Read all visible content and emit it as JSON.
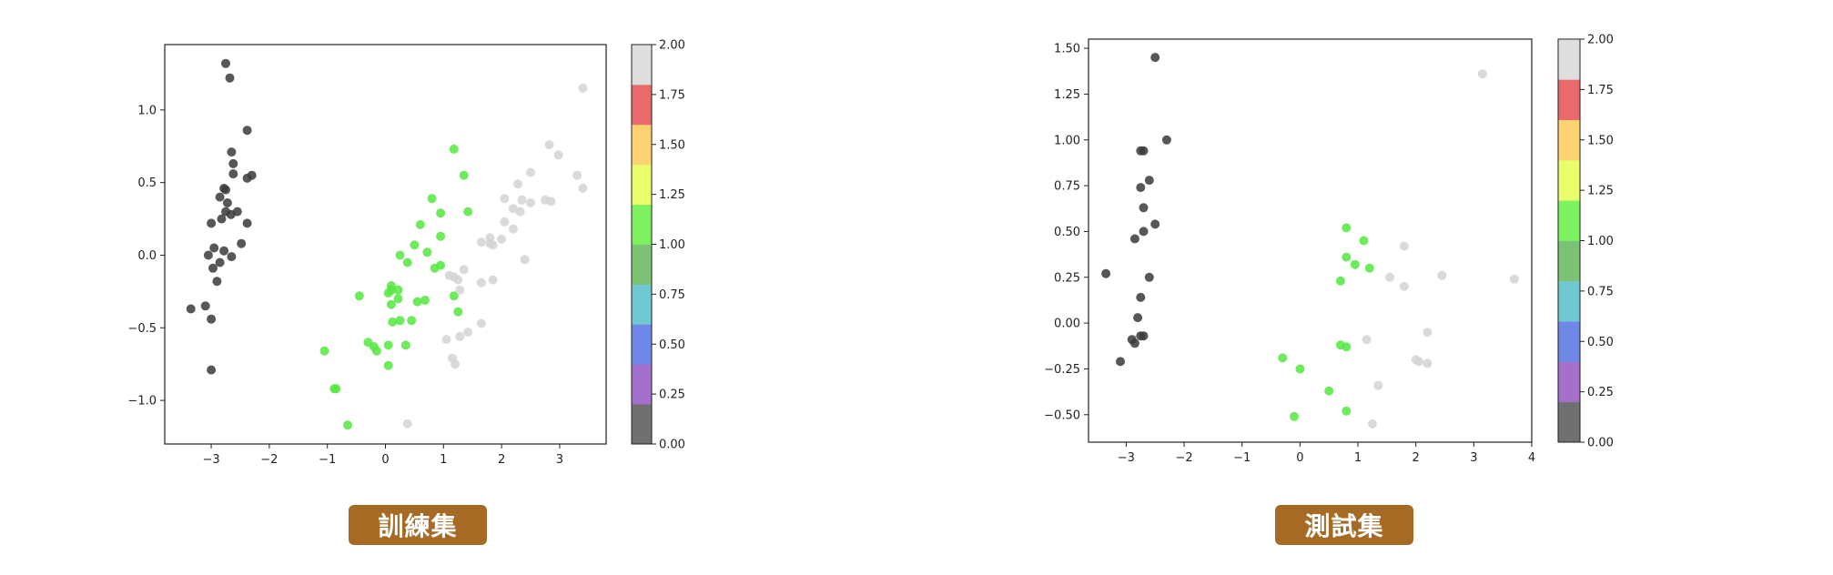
{
  "captions": [
    "訓練集",
    "測試集"
  ],
  "colormap": {
    "bins": [
      "#707070",
      "#a470cc",
      "#6e88e8",
      "#70c9d2",
      "#7bc274",
      "#7ef161",
      "#eafd6a",
      "#fdd272",
      "#e86a6a",
      "#dedede"
    ],
    "ticks": [
      "0.00",
      "0.25",
      "0.50",
      "0.75",
      "1.00",
      "1.25",
      "1.50",
      "1.75",
      "2.00"
    ]
  },
  "chart_data": [
    {
      "type": "scatter",
      "title": "",
      "xlim": [
        -3.8,
        3.8
      ],
      "ylim": [
        -1.3,
        1.45
      ],
      "xticks": [
        -3,
        -2,
        -1,
        0,
        1,
        2,
        3
      ],
      "yticks": [
        -1.0,
        -0.5,
        0.0,
        0.5,
        1.0
      ],
      "xtick_labels": [
        "−3",
        "−2",
        "−1",
        "0",
        "1",
        "2",
        "3"
      ],
      "ytick_labels": [
        "−1.0",
        "−0.5",
        "0.0",
        "0.5",
        "1.0"
      ],
      "colorbar": {
        "min": 0,
        "max": 2
      },
      "series": [
        {
          "class": 0,
          "color": "#3a3a3a",
          "points": [
            [
              -2.75,
              1.32
            ],
            [
              -2.68,
              1.22
            ],
            [
              -2.38,
              0.86
            ],
            [
              -2.65,
              0.71
            ],
            [
              -2.62,
              0.63
            ],
            [
              -2.62,
              0.56
            ],
            [
              -2.3,
              0.55
            ],
            [
              -2.38,
              0.53
            ],
            [
              -2.78,
              0.46
            ],
            [
              -2.75,
              0.45
            ],
            [
              -2.85,
              0.4
            ],
            [
              -2.72,
              0.36
            ],
            [
              -2.55,
              0.3
            ],
            [
              -2.75,
              0.3
            ],
            [
              -2.82,
              0.25
            ],
            [
              -2.66,
              0.28
            ],
            [
              -2.38,
              0.22
            ],
            [
              -3.0,
              0.22
            ],
            [
              -2.48,
              0.08
            ],
            [
              -2.95,
              0.05
            ],
            [
              -2.78,
              0.03
            ],
            [
              -3.05,
              0.0
            ],
            [
              -2.65,
              -0.01
            ],
            [
              -2.85,
              -0.05
            ],
            [
              -2.97,
              -0.09
            ],
            [
              -2.9,
              -0.18
            ],
            [
              -3.1,
              -0.35
            ],
            [
              -3.35,
              -0.37
            ],
            [
              -3.0,
              -0.44
            ],
            [
              -3.0,
              -0.79
            ]
          ]
        },
        {
          "class": 1,
          "color": "#55e840",
          "points": [
            [
              1.18,
              0.73
            ],
            [
              1.35,
              0.55
            ],
            [
              0.8,
              0.39
            ],
            [
              0.6,
              0.21
            ],
            [
              0.95,
              0.29
            ],
            [
              1.42,
              0.3
            ],
            [
              0.95,
              0.13
            ],
            [
              0.5,
              0.07
            ],
            [
              0.25,
              0.0
            ],
            [
              0.72,
              0.02
            ],
            [
              0.38,
              -0.05
            ],
            [
              0.95,
              -0.07
            ],
            [
              0.85,
              -0.09
            ],
            [
              0.1,
              -0.21
            ],
            [
              0.1,
              -0.24
            ],
            [
              0.22,
              -0.24
            ],
            [
              0.05,
              -0.26
            ],
            [
              -0.45,
              -0.28
            ],
            [
              0.22,
              -0.3
            ],
            [
              0.68,
              -0.31
            ],
            [
              0.55,
              -0.32
            ],
            [
              0.1,
              -0.34
            ],
            [
              1.18,
              -0.28
            ],
            [
              1.25,
              -0.39
            ],
            [
              0.25,
              -0.45
            ],
            [
              0.12,
              -0.46
            ],
            [
              0.45,
              -0.45
            ],
            [
              -0.3,
              -0.6
            ],
            [
              0.35,
              -0.62
            ],
            [
              -0.2,
              -0.63
            ],
            [
              0.05,
              -0.62
            ],
            [
              -0.15,
              -0.66
            ],
            [
              -1.05,
              -0.66
            ],
            [
              0.05,
              -0.76
            ],
            [
              -0.88,
              -0.92
            ],
            [
              -0.85,
              -0.92
            ],
            [
              -0.65,
              -1.17
            ]
          ]
        },
        {
          "class": 2,
          "color": "#d4d4d4",
          "points": [
            [
              3.4,
              1.15
            ],
            [
              2.82,
              0.76
            ],
            [
              2.98,
              0.69
            ],
            [
              3.3,
              0.55
            ],
            [
              2.5,
              0.57
            ],
            [
              2.28,
              0.49
            ],
            [
              3.4,
              0.46
            ],
            [
              2.05,
              0.39
            ],
            [
              2.35,
              0.38
            ],
            [
              2.75,
              0.38
            ],
            [
              2.85,
              0.37
            ],
            [
              2.5,
              0.36
            ],
            [
              2.2,
              0.32
            ],
            [
              2.32,
              0.3
            ],
            [
              2.05,
              0.23
            ],
            [
              2.2,
              0.18
            ],
            [
              1.8,
              0.12
            ],
            [
              2.0,
              0.11
            ],
            [
              1.65,
              0.09
            ],
            [
              1.8,
              0.08
            ],
            [
              1.85,
              0.07
            ],
            [
              1.35,
              -0.1
            ],
            [
              1.1,
              -0.14
            ],
            [
              1.18,
              -0.15
            ],
            [
              1.25,
              -0.17
            ],
            [
              1.85,
              -0.17
            ],
            [
              1.65,
              -0.19
            ],
            [
              1.28,
              -0.24
            ],
            [
              2.4,
              -0.03
            ],
            [
              1.65,
              -0.47
            ],
            [
              1.42,
              -0.53
            ],
            [
              1.28,
              -0.56
            ],
            [
              1.05,
              -0.58
            ],
            [
              1.15,
              -0.71
            ],
            [
              1.2,
              -0.75
            ],
            [
              0.38,
              -1.16
            ]
          ]
        }
      ]
    },
    {
      "type": "scatter",
      "title": "",
      "xlim": [
        -3.65,
        4.0
      ],
      "ylim": [
        -0.65,
        1.55
      ],
      "xticks": [
        -3,
        -2,
        -1,
        0,
        1,
        2,
        3,
        4
      ],
      "yticks": [
        -0.5,
        -0.25,
        0.0,
        0.25,
        0.5,
        0.75,
        1.0,
        1.25,
        1.5
      ],
      "xtick_labels": [
        "−3",
        "−2",
        "−1",
        "0",
        "1",
        "2",
        "3",
        "4"
      ],
      "ytick_labels": [
        "−0.50",
        "−0.25",
        "0.00",
        "0.25",
        "0.50",
        "0.75",
        "1.00",
        "1.25",
        "1.50"
      ],
      "colorbar": {
        "min": 0,
        "max": 2
      },
      "series": [
        {
          "class": 0,
          "color": "#3a3a3a",
          "points": [
            [
              -2.5,
              1.45
            ],
            [
              -2.3,
              1.0
            ],
            [
              -2.7,
              0.94
            ],
            [
              -2.75,
              0.94
            ],
            [
              -2.6,
              0.78
            ],
            [
              -2.75,
              0.74
            ],
            [
              -2.7,
              0.63
            ],
            [
              -2.5,
              0.54
            ],
            [
              -2.7,
              0.5
            ],
            [
              -2.85,
              0.46
            ],
            [
              -3.35,
              0.27
            ],
            [
              -2.6,
              0.25
            ],
            [
              -2.75,
              0.14
            ],
            [
              -2.8,
              0.03
            ],
            [
              -2.75,
              -0.07
            ],
            [
              -2.7,
              -0.07
            ],
            [
              -2.9,
              -0.09
            ],
            [
              -2.85,
              -0.11
            ],
            [
              -3.1,
              -0.21
            ]
          ]
        },
        {
          "class": 1,
          "color": "#55e840",
          "points": [
            [
              0.8,
              0.52
            ],
            [
              1.1,
              0.45
            ],
            [
              0.8,
              0.36
            ],
            [
              0.95,
              0.32
            ],
            [
              1.2,
              0.3
            ],
            [
              0.7,
              0.23
            ],
            [
              -0.3,
              -0.19
            ],
            [
              0.0,
              -0.25
            ],
            [
              0.7,
              -0.12
            ],
            [
              0.8,
              -0.13
            ],
            [
              0.5,
              -0.37
            ],
            [
              -0.1,
              -0.51
            ],
            [
              0.8,
              -0.48
            ]
          ]
        },
        {
          "class": 2,
          "color": "#d4d4d4",
          "points": [
            [
              3.15,
              1.36
            ],
            [
              1.8,
              0.42
            ],
            [
              1.55,
              0.25
            ],
            [
              2.45,
              0.26
            ],
            [
              3.7,
              0.24
            ],
            [
              1.8,
              0.2
            ],
            [
              2.2,
              -0.05
            ],
            [
              1.15,
              -0.09
            ],
            [
              2.0,
              -0.2
            ],
            [
              2.05,
              -0.21
            ],
            [
              2.2,
              -0.22
            ],
            [
              1.35,
              -0.34
            ],
            [
              1.25,
              -0.55
            ]
          ]
        }
      ]
    }
  ]
}
